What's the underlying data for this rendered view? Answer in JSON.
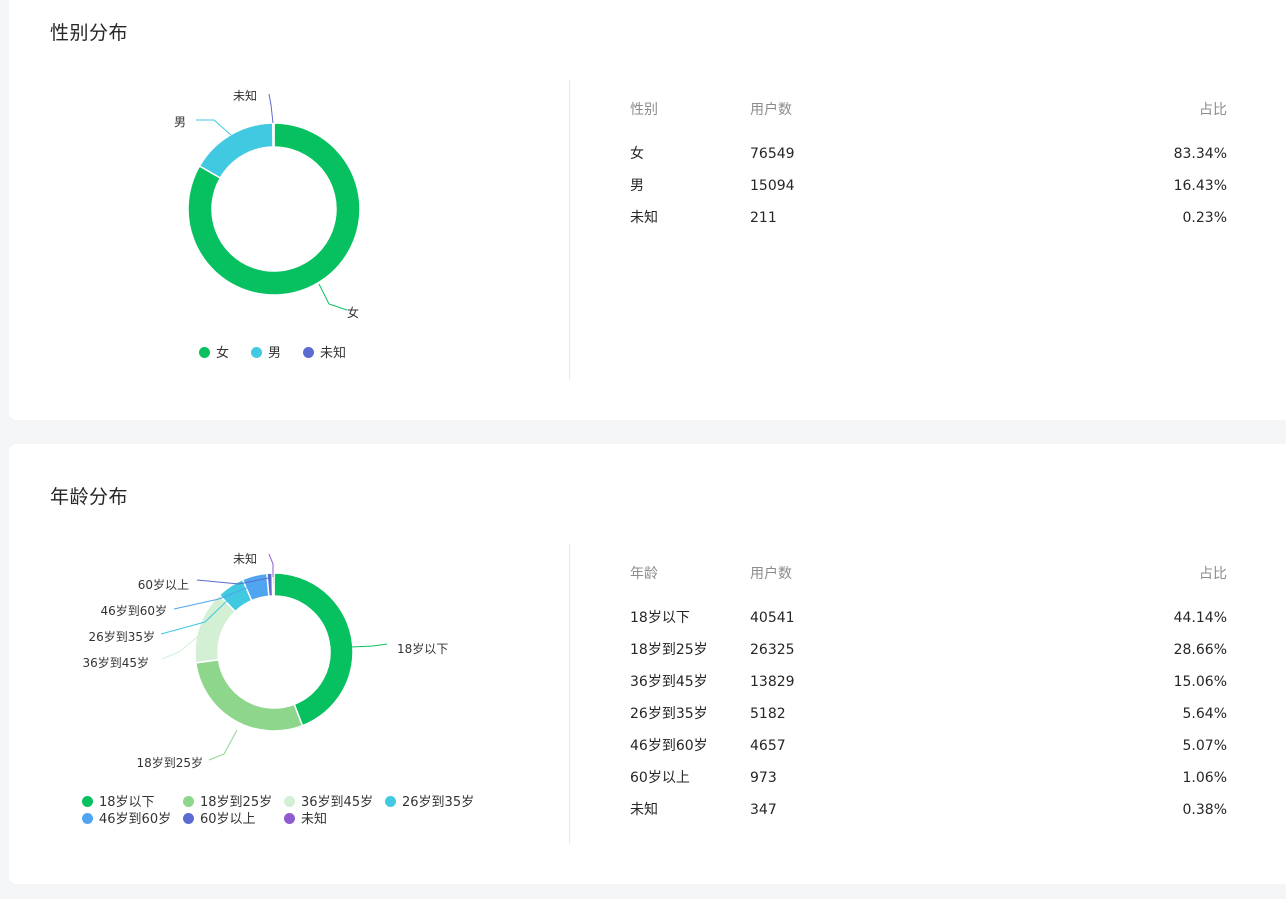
{
  "gender": {
    "title": "性别分布",
    "table": {
      "headers": [
        "性别",
        "用户数",
        "占比"
      ],
      "rows": [
        {
          "name": "女",
          "count": "76549",
          "pct": "83.34%"
        },
        {
          "name": "男",
          "count": "15094",
          "pct": "16.43%"
        },
        {
          "name": "未知",
          "count": "211",
          "pct": "0.23%"
        }
      ]
    }
  },
  "age": {
    "title": "年龄分布",
    "table": {
      "headers": [
        "年龄",
        "用户数",
        "占比"
      ],
      "rows": [
        {
          "name": "18岁以下",
          "count": "40541",
          "pct": "44.14%"
        },
        {
          "name": "18岁到25岁",
          "count": "26325",
          "pct": "28.66%"
        },
        {
          "name": "36岁到45岁",
          "count": "13829",
          "pct": "15.06%"
        },
        {
          "name": "26岁到35岁",
          "count": "5182",
          "pct": "5.64%"
        },
        {
          "name": "46岁到60岁",
          "count": "4657",
          "pct": "5.07%"
        },
        {
          "name": "60岁以上",
          "count": "973",
          "pct": "1.06%"
        },
        {
          "name": "未知",
          "count": "347",
          "pct": "0.38%"
        }
      ]
    }
  },
  "chart_data": [
    {
      "type": "pie",
      "variant": "donut",
      "categories": [
        "女",
        "男",
        "未知"
      ],
      "values": [
        76549,
        15094,
        211
      ],
      "colors": [
        "#07c160",
        "#40c9e0",
        "#5b6bd0"
      ],
      "legend": "bottom"
    },
    {
      "type": "pie",
      "variant": "donut",
      "categories": [
        "18岁以下",
        "18岁到25岁",
        "36岁到45岁",
        "26岁到35岁",
        "46岁到60岁",
        "60岁以上",
        "未知"
      ],
      "values": [
        40541,
        26325,
        13829,
        5182,
        4657,
        973,
        347
      ],
      "colors": [
        "#07c160",
        "#8dd68b",
        "#d3f0d4",
        "#40c9e0",
        "#4fa5f0",
        "#5b6bd0",
        "#8e5bd0"
      ],
      "legend": "bottom"
    }
  ]
}
